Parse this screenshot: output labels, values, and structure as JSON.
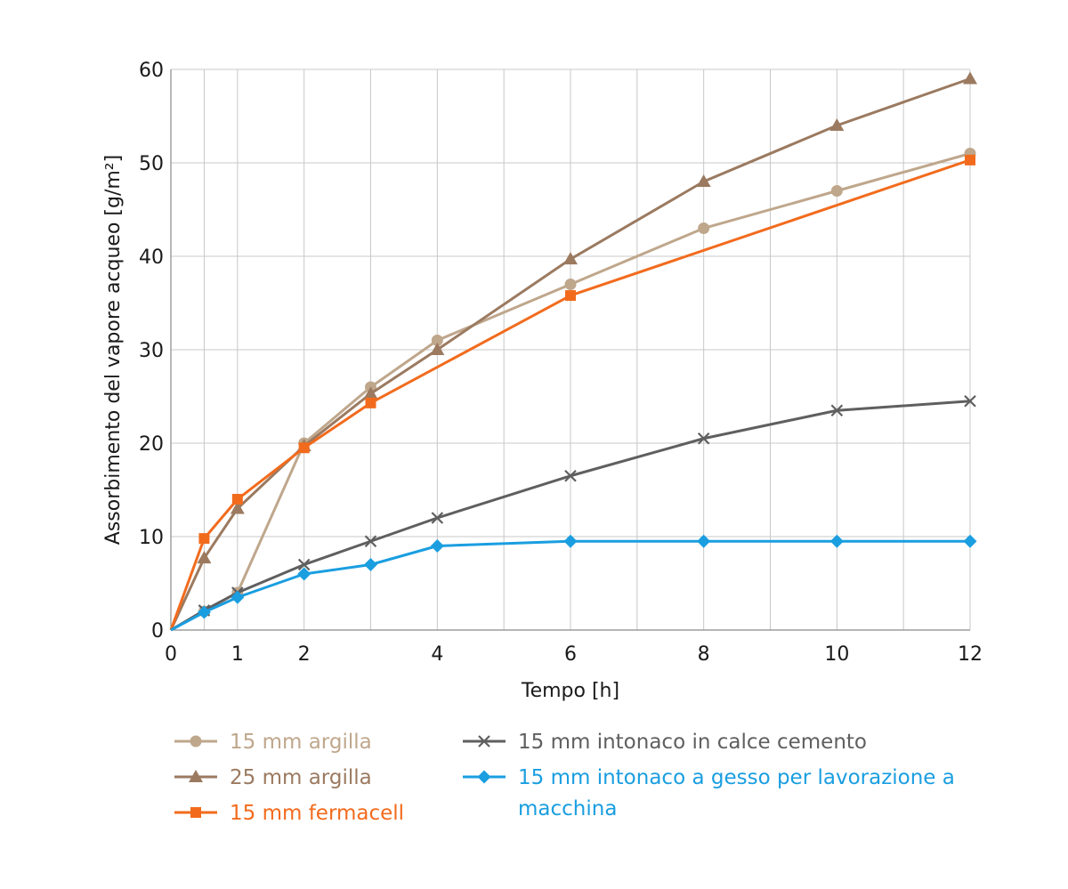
{
  "chart_data": {
    "type": "line",
    "xlabel": "Tempo [h]",
    "ylabel": "Assorbimento del vapore acqueo [g/m²]",
    "xlim": [
      0,
      12
    ],
    "ylim": [
      0,
      60
    ],
    "x_ticks": [
      0,
      1,
      2,
      4,
      6,
      8,
      10,
      12
    ],
    "y_ticks": [
      0,
      10,
      20,
      30,
      40,
      50,
      60
    ],
    "grid": true,
    "legend_position": "bottom",
    "series": [
      {
        "name": "15 mm argilla",
        "color": "#bfa78c",
        "marker": "circle",
        "points": [
          [
            0,
            0
          ],
          [
            0.5,
            2
          ],
          [
            1,
            4
          ],
          [
            2,
            20
          ],
          [
            3,
            26
          ],
          [
            4,
            31
          ],
          [
            6,
            37
          ],
          [
            8,
            43
          ],
          [
            10,
            47
          ],
          [
            12,
            51
          ]
        ]
      },
      {
        "name": "25 mm argilla",
        "color": "#9b7a60",
        "marker": "triangle",
        "points": [
          [
            0,
            0
          ],
          [
            0.5,
            7.7
          ],
          [
            1,
            13
          ],
          [
            2,
            19.7
          ],
          [
            3,
            25.3
          ],
          [
            4,
            30
          ],
          [
            6,
            39.7
          ],
          [
            8,
            48
          ],
          [
            10,
            54
          ],
          [
            12,
            59
          ]
        ]
      },
      {
        "name": "15 mm fermacell",
        "color": "#f26b1d",
        "marker": "square",
        "points": [
          [
            0,
            0
          ],
          [
            0.5,
            9.8
          ],
          [
            1,
            14
          ],
          [
            2,
            19.5
          ],
          [
            3,
            24.3
          ],
          [
            6,
            35.8
          ],
          [
            12,
            50.3
          ]
        ]
      },
      {
        "name": "15 mm intonaco in calce cemento",
        "color": "#5f5f5f",
        "marker": "x",
        "points": [
          [
            0,
            0
          ],
          [
            0.5,
            2.1
          ],
          [
            1,
            4
          ],
          [
            2,
            7
          ],
          [
            3,
            9.5
          ],
          [
            4,
            12
          ],
          [
            6,
            16.5
          ],
          [
            8,
            20.5
          ],
          [
            10,
            23.5
          ],
          [
            12,
            24.5
          ]
        ]
      },
      {
        "name": "15 mm intonaco a gesso per lavorazione a macchina",
        "legend_lines": [
          "15 mm intonaco a gesso per lavorazione a",
          "macchina"
        ],
        "color": "#1a9ee0",
        "marker": "diamond",
        "points": [
          [
            0,
            0
          ],
          [
            0.5,
            1.9
          ],
          [
            1,
            3.5
          ],
          [
            2,
            6
          ],
          [
            3,
            7
          ],
          [
            4,
            9
          ],
          [
            6,
            9.5
          ],
          [
            8,
            9.5
          ],
          [
            10,
            9.5
          ],
          [
            12,
            9.5
          ]
        ]
      }
    ]
  }
}
